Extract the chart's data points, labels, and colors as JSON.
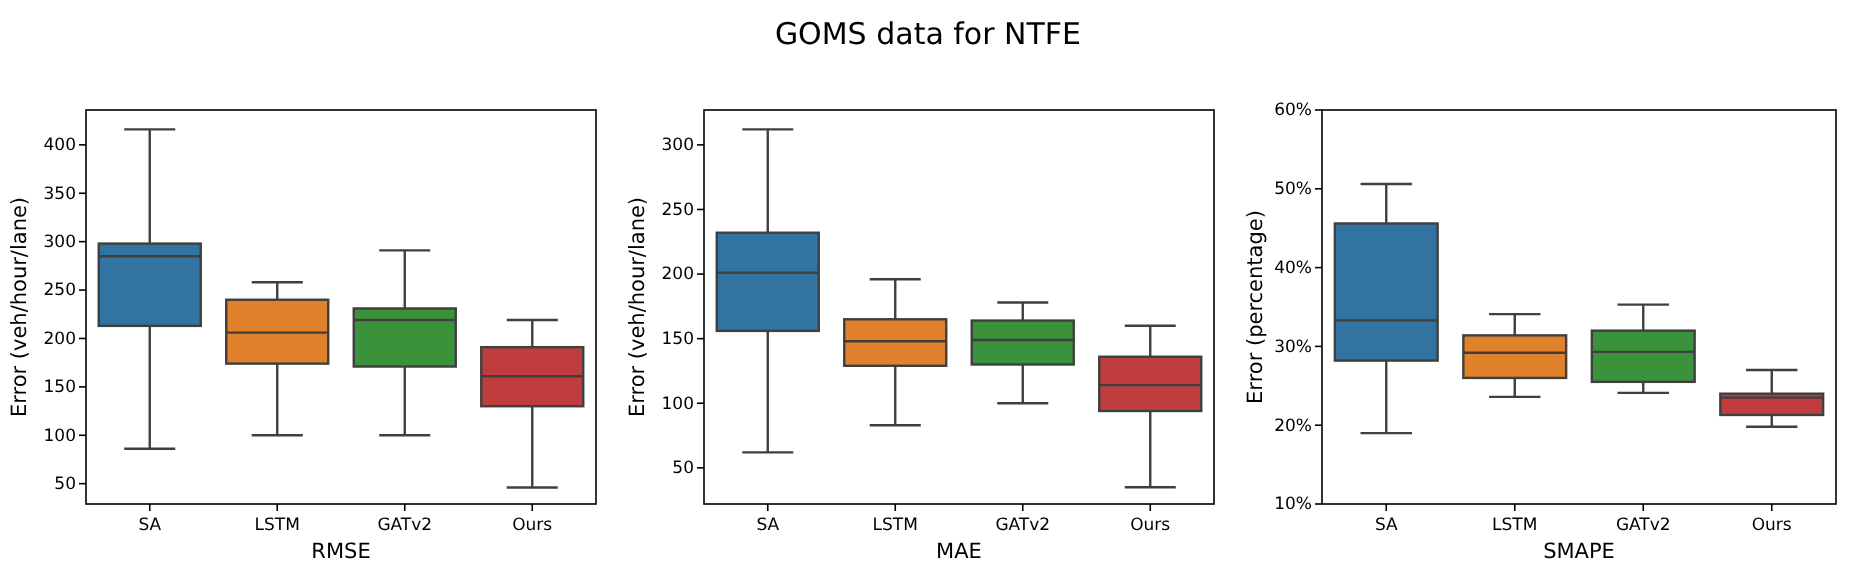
{
  "chart_data": [
    {
      "type": "box",
      "xlabel": "RMSE",
      "ylabel": "Error (veh/hour/lane)",
      "categories": [
        "SA",
        "LSTM",
        "GATv2",
        "Ours"
      ],
      "colors": [
        "#3274a1",
        "#e1812c",
        "#3a923a",
        "#c03d3e"
      ],
      "ylim": [
        29,
        436
      ],
      "yticks": [
        50,
        100,
        150,
        200,
        250,
        300,
        350,
        400
      ],
      "boxes": [
        {
          "low": 86,
          "q1": 213,
          "median": 285,
          "q3": 298,
          "high": 416
        },
        {
          "low": 100,
          "q1": 174,
          "median": 206,
          "q3": 240,
          "high": 258
        },
        {
          "low": 100,
          "q1": 171,
          "median": 219,
          "q3": 231,
          "high": 291
        },
        {
          "low": 46,
          "q1": 130,
          "median": 161,
          "q3": 191,
          "high": 219
        }
      ]
    },
    {
      "type": "box",
      "title": "GOMS data for NTFE",
      "xlabel": "MAE",
      "ylabel": "Error (veh/hour/lane)",
      "categories": [
        "SA",
        "LSTM",
        "GATv2",
        "Ours"
      ],
      "colors": [
        "#3274a1",
        "#e1812c",
        "#3a923a",
        "#c03d3e"
      ],
      "ylim": [
        22,
        327
      ],
      "yticks": [
        50,
        100,
        150,
        200,
        250,
        300
      ],
      "boxes": [
        {
          "low": 62,
          "q1": 156,
          "median": 201,
          "q3": 232,
          "high": 312
        },
        {
          "low": 83,
          "q1": 129,
          "median": 148,
          "q3": 165,
          "high": 196
        },
        {
          "low": 100,
          "q1": 130,
          "median": 149,
          "q3": 164,
          "high": 178
        },
        {
          "low": 35,
          "q1": 94,
          "median": 114,
          "q3": 136,
          "high": 160
        }
      ]
    },
    {
      "type": "box",
      "xlabel": "SMAPE",
      "ylabel": "Error (percentage)",
      "categories": [
        "SA",
        "LSTM",
        "GATv2",
        "Ours"
      ],
      "colors": [
        "#3274a1",
        "#e1812c",
        "#3a923a",
        "#c03d3e"
      ],
      "ylim": [
        10,
        60
      ],
      "yticks": [
        {
          "value": 10,
          "label": "10%"
        },
        {
          "value": 20,
          "label": "20%"
        },
        {
          "value": 30,
          "label": "30%"
        },
        {
          "value": 40,
          "label": "40%"
        },
        {
          "value": 50,
          "label": "50%"
        },
        {
          "value": 60,
          "label": "60%"
        }
      ],
      "boxes": [
        {
          "low": 19,
          "q1": 28.2,
          "median": 33.3,
          "q3": 45.6,
          "high": 50.6
        },
        {
          "low": 23.6,
          "q1": 26,
          "median": 29.2,
          "q3": 31.4,
          "high": 34.1
        },
        {
          "low": 24.1,
          "q1": 25.5,
          "median": 29.3,
          "q3": 32,
          "high": 35.3
        },
        {
          "low": 19.8,
          "q1": 21.3,
          "median": 23.5,
          "q3": 24,
          "high": 27
        }
      ]
    }
  ]
}
